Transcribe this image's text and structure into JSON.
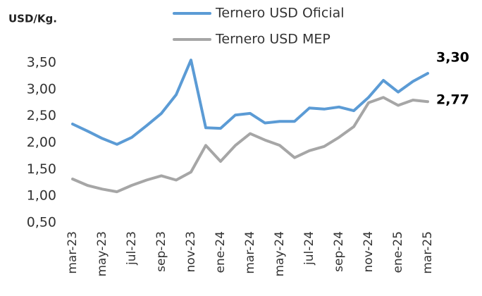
{
  "chart_data": {
    "type": "line",
    "y_label": "USD/Kg.",
    "categories": [
      "mar-23",
      null,
      "may-23",
      null,
      "jul-23",
      null,
      "sep-23",
      null,
      "nov-23",
      null,
      "ene-24",
      null,
      "mar-24",
      null,
      "may-24",
      null,
      "jul-24",
      null,
      "sep-24",
      null,
      "nov-24",
      null,
      "ene-25",
      null,
      "mar-25"
    ],
    "series": [
      {
        "name": "Ternero USD Oficial",
        "color": "#5b9bd5",
        "values": [
          2.35,
          2.22,
          2.08,
          1.97,
          2.1,
          2.32,
          2.55,
          2.9,
          3.55,
          2.28,
          2.27,
          2.52,
          2.55,
          2.37,
          2.4,
          2.4,
          2.65,
          2.63,
          2.67,
          2.6,
          2.85,
          3.17,
          2.95,
          3.15,
          3.3
        ],
        "value_labels": [
          null,
          null,
          null,
          null,
          null,
          null,
          null,
          null,
          null,
          null,
          null,
          null,
          null,
          null,
          null,
          null,
          null,
          null,
          null,
          null,
          null,
          null,
          null,
          null,
          "3,30"
        ]
      },
      {
        "name": "Ternero USD MEP",
        "color": "#a6a6a6",
        "values": [
          1.32,
          1.2,
          1.13,
          1.08,
          1.2,
          1.3,
          1.38,
          1.3,
          1.45,
          1.95,
          1.65,
          1.95,
          2.17,
          2.05,
          1.95,
          1.72,
          1.85,
          1.93,
          2.1,
          2.3,
          2.75,
          2.85,
          2.7,
          2.8,
          2.77
        ],
        "value_labels": [
          null,
          null,
          null,
          null,
          null,
          null,
          null,
          null,
          null,
          null,
          null,
          null,
          null,
          null,
          null,
          null,
          null,
          null,
          null,
          null,
          null,
          null,
          null,
          null,
          "2,77"
        ]
      }
    ],
    "ylim": [
      0.5,
      3.5
    ],
    "yticks": [
      {
        "value": 0.5,
        "label": "0,50"
      },
      {
        "value": 1,
        "label": "1,00"
      },
      {
        "value": 1.5,
        "label": "1,50"
      },
      {
        "value": 2,
        "label": "2,00"
      },
      {
        "value": 2.5,
        "label": "2,50"
      },
      {
        "value": 3,
        "label": "3,00"
      },
      {
        "value": 3.5,
        "label": "3,50"
      }
    ],
    "grid": false
  }
}
